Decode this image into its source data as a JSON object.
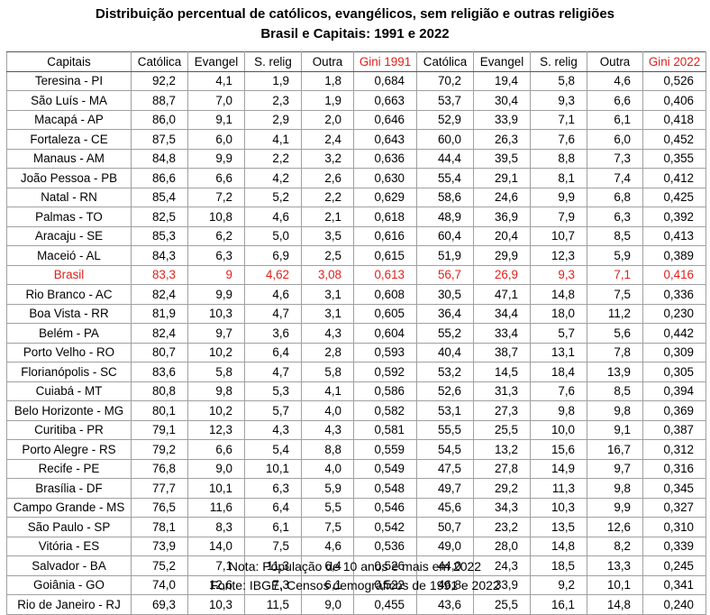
{
  "title_line1": "Distribuição percentual de católicos, evangélicos, sem religião e outras religiões",
  "title_line2": "Brasil e Capitais: 1991 e 2022",
  "headers": [
    "Capitais",
    "Católica",
    "Evangel",
    "S. relig",
    "Outra",
    "Gini 1991",
    "Católica",
    "Evangel",
    "S. relig",
    "Outra",
    "Gini 2022"
  ],
  "header_red": [
    false,
    false,
    false,
    false,
    false,
    true,
    false,
    false,
    false,
    false,
    true
  ],
  "rows": [
    {
      "red": false,
      "cells": [
        "Teresina - PI",
        "92,2",
        "4,1",
        "1,9",
        "1,8",
        "0,684",
        "70,2",
        "19,4",
        "5,8",
        "4,6",
        "0,526"
      ]
    },
    {
      "red": false,
      "cells": [
        "São Luís - MA",
        "88,7",
        "7,0",
        "2,3",
        "1,9",
        "0,663",
        "53,7",
        "30,4",
        "9,3",
        "6,6",
        "0,406"
      ]
    },
    {
      "red": false,
      "cells": [
        "Macapá - AP",
        "86,0",
        "9,1",
        "2,9",
        "2,0",
        "0,646",
        "52,9",
        "33,9",
        "7,1",
        "6,1",
        "0,418"
      ]
    },
    {
      "red": false,
      "cells": [
        "Fortaleza - CE",
        "87,5",
        "6,0",
        "4,1",
        "2,4",
        "0,643",
        "60,0",
        "26,3",
        "7,6",
        "6,0",
        "0,452"
      ]
    },
    {
      "red": false,
      "cells": [
        "Manaus - AM",
        "84,8",
        "9,9",
        "2,2",
        "3,2",
        "0,636",
        "44,4",
        "39,5",
        "8,8",
        "7,3",
        "0,355"
      ]
    },
    {
      "red": false,
      "cells": [
        "João Pessoa - PB",
        "86,6",
        "6,6",
        "4,2",
        "2,6",
        "0,630",
        "55,4",
        "29,1",
        "8,1",
        "7,4",
        "0,412"
      ]
    },
    {
      "red": false,
      "cells": [
        "Natal - RN",
        "85,4",
        "7,2",
        "5,2",
        "2,2",
        "0,629",
        "58,6",
        "24,6",
        "9,9",
        "6,8",
        "0,425"
      ]
    },
    {
      "red": false,
      "cells": [
        "Palmas - TO",
        "82,5",
        "10,8",
        "4,6",
        "2,1",
        "0,618",
        "48,9",
        "36,9",
        "7,9",
        "6,3",
        "0,392"
      ]
    },
    {
      "red": false,
      "cells": [
        "Aracaju - SE",
        "85,3",
        "6,2",
        "5,0",
        "3,5",
        "0,616",
        "60,4",
        "20,4",
        "10,7",
        "8,5",
        "0,413"
      ]
    },
    {
      "red": false,
      "cells": [
        "Maceió - AL",
        "84,3",
        "6,3",
        "6,9",
        "2,5",
        "0,615",
        "51,9",
        "29,9",
        "12,3",
        "5,9",
        "0,389"
      ]
    },
    {
      "red": true,
      "cells": [
        "Brasil",
        "83,3",
        "9",
        "4,62",
        "3,08",
        "0,613",
        "56,7",
        "26,9",
        "9,3",
        "7,1",
        "0,416"
      ]
    },
    {
      "red": false,
      "cells": [
        "Rio Branco - AC",
        "82,4",
        "9,9",
        "4,6",
        "3,1",
        "0,608",
        "30,5",
        "47,1",
        "14,8",
        "7,5",
        "0,336"
      ]
    },
    {
      "red": false,
      "cells": [
        "Boa Vista - RR",
        "81,9",
        "10,3",
        "4,7",
        "3,1",
        "0,605",
        "36,4",
        "34,4",
        "18,0",
        "11,2",
        "0,230"
      ]
    },
    {
      "red": false,
      "cells": [
        "Belém - PA",
        "82,4",
        "9,7",
        "3,6",
        "4,3",
        "0,604",
        "55,2",
        "33,4",
        "5,7",
        "5,6",
        "0,442"
      ]
    },
    {
      "red": false,
      "cells": [
        "Porto Velho - RO",
        "80,7",
        "10,2",
        "6,4",
        "2,8",
        "0,593",
        "40,4",
        "38,7",
        "13,1",
        "7,8",
        "0,309"
      ]
    },
    {
      "red": false,
      "cells": [
        "Florianópolis - SC",
        "83,6",
        "5,8",
        "4,7",
        "5,8",
        "0,592",
        "53,2",
        "14,5",
        "18,4",
        "13,9",
        "0,305"
      ]
    },
    {
      "red": false,
      "cells": [
        "Cuiabá - MT",
        "80,8",
        "9,8",
        "5,3",
        "4,1",
        "0,586",
        "52,6",
        "31,3",
        "7,6",
        "8,5",
        "0,394"
      ]
    },
    {
      "red": false,
      "cells": [
        "Belo Horizonte - MG",
        "80,1",
        "10,2",
        "5,7",
        "4,0",
        "0,582",
        "53,1",
        "27,3",
        "9,8",
        "9,8",
        "0,369"
      ]
    },
    {
      "red": false,
      "cells": [
        "Curitiba - PR",
        "79,1",
        "12,3",
        "4,3",
        "4,3",
        "0,581",
        "55,5",
        "25,5",
        "10,0",
        "9,1",
        "0,387"
      ]
    },
    {
      "red": false,
      "cells": [
        "Porto Alegre - RS",
        "79,2",
        "6,6",
        "5,4",
        "8,8",
        "0,559",
        "54,5",
        "13,2",
        "15,6",
        "16,7",
        "0,312"
      ]
    },
    {
      "red": false,
      "cells": [
        "Recife - PE",
        "76,8",
        "9,0",
        "10,1",
        "4,0",
        "0,549",
        "47,5",
        "27,8",
        "14,9",
        "9,7",
        "0,316"
      ]
    },
    {
      "red": false,
      "cells": [
        "Brasília - DF",
        "77,7",
        "10,1",
        "6,3",
        "5,9",
        "0,548",
        "49,7",
        "29,2",
        "11,3",
        "9,8",
        "0,345"
      ]
    },
    {
      "red": false,
      "cells": [
        "Campo Grande - MS",
        "76,5",
        "11,6",
        "6,4",
        "5,5",
        "0,546",
        "45,6",
        "34,3",
        "10,3",
        "9,9",
        "0,327"
      ]
    },
    {
      "red": false,
      "cells": [
        "São Paulo - SP",
        "78,1",
        "8,3",
        "6,1",
        "7,5",
        "0,542",
        "50,7",
        "23,2",
        "13,5",
        "12,6",
        "0,310"
      ]
    },
    {
      "red": false,
      "cells": [
        "Vitória - ES",
        "73,9",
        "14,0",
        "7,5",
        "4,6",
        "0,536",
        "49,0",
        "28,0",
        "14,8",
        "8,2",
        "0,339"
      ]
    },
    {
      "red": false,
      "cells": [
        "Salvador - BA",
        "75,2",
        "7,1",
        "11,3",
        "6,4",
        "0,526",
        "44,0",
        "24,3",
        "18,5",
        "13,3",
        "0,245"
      ]
    },
    {
      "red": false,
      "cells": [
        "Goiânia - GO",
        "74,0",
        "12,6",
        "7,3",
        "6,1",
        "0,522",
        "46,8",
        "33,9",
        "9,2",
        "10,1",
        "0,341"
      ]
    },
    {
      "red": false,
      "cells": [
        "Rio de Janeiro - RJ",
        "69,3",
        "10,3",
        "11,5",
        "9,0",
        "0,455",
        "43,6",
        "25,5",
        "16,1",
        "14,8",
        "0,240"
      ]
    }
  ],
  "note": "Nota: População de 10 anos e mais em 2022",
  "source": "Fonte: IBGE, Censos demográficos de 1991 e 2022",
  "colors": {
    "highlight": "#e0201a"
  }
}
